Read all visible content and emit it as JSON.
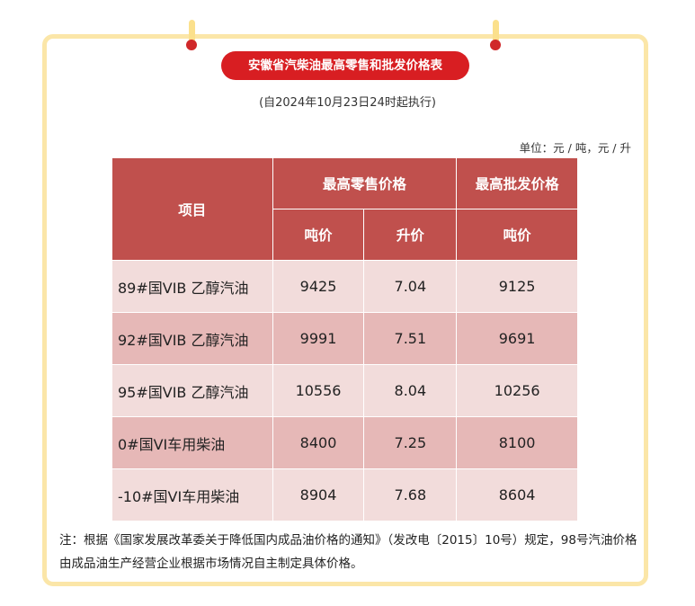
{
  "title": "安徽省汽柴油最高零售和批发价格表",
  "subtitle": "(自2024年10月23日24时起执行)",
  "unit": "单位：元 / 吨，元 / 升",
  "headers": {
    "item": "项目",
    "retail": "最高零售价格",
    "wholesale": "最高批发价格",
    "ton": "吨价",
    "liter": "升价",
    "ton2": "吨价"
  },
  "rows": [
    {
      "name": "89#国VIB 乙醇汽油",
      "retail_ton": "9425",
      "retail_liter": "7.04",
      "wholesale_ton": "9125"
    },
    {
      "name": "92#国VIB 乙醇汽油",
      "retail_ton": "9991",
      "retail_liter": "7.51",
      "wholesale_ton": "9691"
    },
    {
      "name": "95#国VIB 乙醇汽油",
      "retail_ton": "10556",
      "retail_liter": "8.04",
      "wholesale_ton": "10256"
    },
    {
      "name": "0#国VI车用柴油",
      "retail_ton": "8400",
      "retail_liter": "7.25",
      "wholesale_ton": "8100"
    },
    {
      "name": "-10#国VI车用柴油",
      "retail_ton": "8904",
      "retail_liter": "7.68",
      "wholesale_ton": "8604"
    }
  ],
  "note": "注：根据《国家发展改革委关于降低国内成品油价格的通知》（发改电〔2015〕10号）规定，98号汽油价格由成品油生产经营企业根据市场情况自主制定具体价格。",
  "colors": {
    "header": "#c0504d",
    "row_light": "#f2dcdb",
    "row_dark": "#e6b8b7",
    "title_bg": "#d81e22",
    "frame": "#fbe6a8"
  }
}
